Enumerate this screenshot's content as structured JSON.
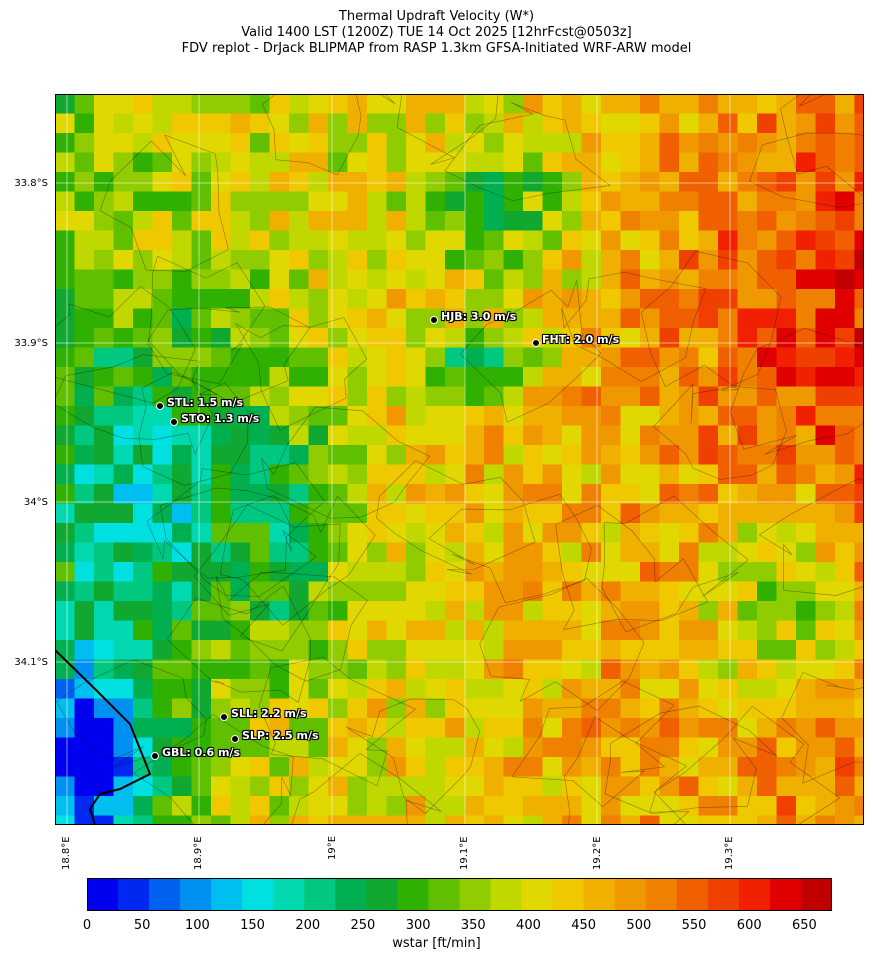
{
  "title": {
    "line1": "Thermal Updraft Velocity (W*)",
    "line2": "Valid 1400 LST (1200Z) TUE 14 Oct 2025 [12hrFcst@0503z]",
    "line3": "FDV replot - DrJack BLIPMAP from RASP 1.3km GFSA-Initiated WRF-ARW model"
  },
  "axes": {
    "lat_labels": [
      "33.8°S",
      "33.9°S",
      "34°S",
      "34.1°S"
    ],
    "lon_labels": [
      "18.8°E",
      "18.9°E",
      "19°E",
      "19.1°E",
      "19.2°E",
      "19.3°E"
    ]
  },
  "stations": [
    {
      "label": "HJB: 3.0 m/s"
    },
    {
      "label": "FHT: 2.0 m/s"
    },
    {
      "label": "STL: 1.5 m/s"
    },
    {
      "label": "STO: 1.3 m/s"
    },
    {
      "label": "SLL: 2.2 m/s"
    },
    {
      "label": "SLP: 2.5 m/s"
    },
    {
      "label": "GBL: 0.6 m/s"
    }
  ],
  "colorbar": {
    "label": "wstar [ft/min]",
    "ticks": [
      "0",
      "50",
      "100",
      "150",
      "200",
      "250",
      "300",
      "350",
      "400",
      "450",
      "500",
      "550",
      "600",
      "650"
    ],
    "colors": [
      "#0000f0",
      "#0028f0",
      "#0060f0",
      "#0090f0",
      "#00bef0",
      "#00e0e0",
      "#00d8b0",
      "#00c880",
      "#00b050",
      "#10a830",
      "#30b000",
      "#60c000",
      "#90cc00",
      "#c0d800",
      "#e0d800",
      "#f0c800",
      "#f0b000",
      "#f09800",
      "#f08000",
      "#f06000",
      "#f04000",
      "#f02000",
      "#e00000",
      "#c00000"
    ]
  }
}
